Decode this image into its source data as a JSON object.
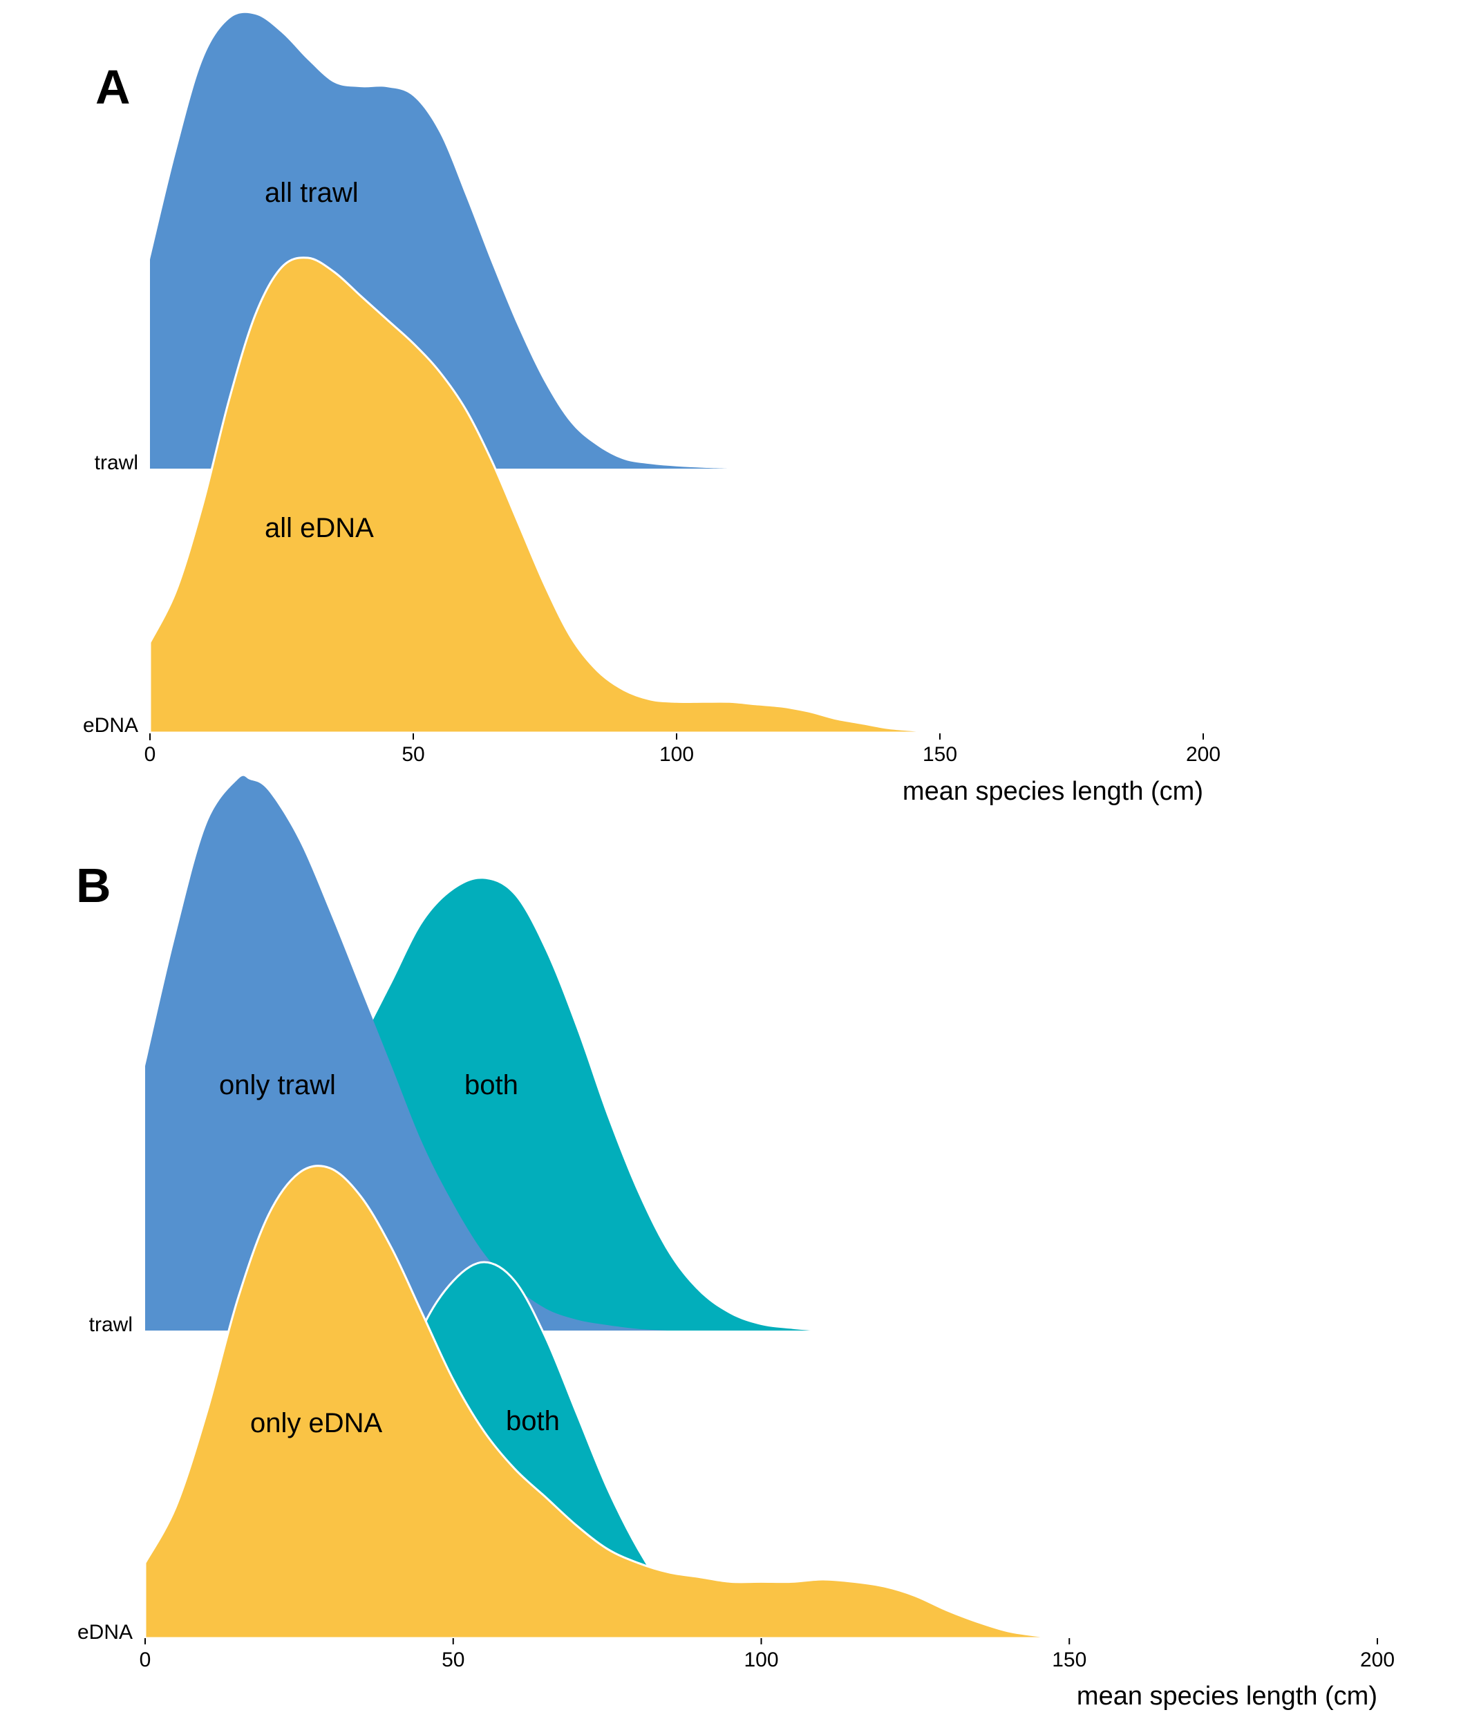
{
  "chart_data": [
    {
      "type": "area",
      "panel": "A",
      "rows": [
        "trawl",
        "eDNA"
      ],
      "xlabel": "mean species length (cm)",
      "ylabel": "",
      "xlim": [
        0,
        200
      ],
      "xticks": [
        0,
        50,
        100,
        150,
        200
      ],
      "grid": false,
      "colors": {
        "trawl": "#5591CF",
        "eDNA": "#FAC345",
        "outline": "#FFFFFF"
      },
      "series": [
        {
          "name": "all trawl",
          "row": "trawl",
          "color": "#5591CF",
          "x": [
            0,
            5,
            10,
            15,
            20,
            25,
            30,
            35,
            40,
            45,
            50,
            55,
            60,
            65,
            70,
            75,
            80,
            85,
            90,
            95,
            100,
            105,
            110
          ],
          "y": [
            0.46,
            0.7,
            0.9,
            0.99,
            1.0,
            0.96,
            0.9,
            0.85,
            0.84,
            0.84,
            0.82,
            0.74,
            0.6,
            0.45,
            0.31,
            0.19,
            0.1,
            0.05,
            0.02,
            0.01,
            0.005,
            0.002,
            0.0
          ]
        },
        {
          "name": "all eDNA",
          "row": "eDNA",
          "color": "#FAC345",
          "x": [
            0,
            5,
            10,
            15,
            20,
            25,
            30,
            35,
            40,
            45,
            50,
            55,
            60,
            65,
            70,
            75,
            80,
            85,
            90,
            95,
            100,
            105,
            110,
            115,
            120,
            125,
            130,
            135,
            140,
            145,
            150
          ],
          "y": [
            0.19,
            0.3,
            0.48,
            0.7,
            0.88,
            0.98,
            1.0,
            0.97,
            0.92,
            0.87,
            0.82,
            0.76,
            0.68,
            0.57,
            0.44,
            0.31,
            0.2,
            0.13,
            0.09,
            0.07,
            0.065,
            0.065,
            0.065,
            0.06,
            0.055,
            0.045,
            0.03,
            0.02,
            0.01,
            0.005,
            0.0
          ]
        }
      ],
      "annotations": [
        "all trawl",
        "all eDNA"
      ]
    },
    {
      "type": "area",
      "panel": "B",
      "rows": [
        "trawl",
        "eDNA"
      ],
      "xlabel": "mean species length (cm)",
      "ylabel": "",
      "xlim": [
        0,
        200
      ],
      "xticks": [
        0,
        50,
        100,
        150,
        200
      ],
      "grid": false,
      "colors": {
        "only": "#5591CF",
        "onlyEDNA": "#FAC345",
        "both": "#02AEBB"
      },
      "series": [
        {
          "name": "only trawl",
          "row": "trawl",
          "color": "#5591CF",
          "x": [
            0,
            5,
            10,
            15,
            17,
            20,
            25,
            30,
            35,
            40,
            45,
            50,
            55,
            60,
            65,
            70,
            75,
            80,
            85
          ],
          "y": [
            0.48,
            0.72,
            0.92,
            1.0,
            1.0,
            0.98,
            0.89,
            0.76,
            0.62,
            0.48,
            0.34,
            0.23,
            0.14,
            0.08,
            0.04,
            0.02,
            0.01,
            0.003,
            0.0
          ]
        },
        {
          "name": "both",
          "row": "trawl",
          "color": "#02AEBB",
          "x": [
            35,
            40,
            45,
            50,
            55,
            60,
            65,
            70,
            75,
            80,
            85,
            90,
            95,
            100,
            105,
            108
          ],
          "y": [
            0.52,
            0.63,
            0.74,
            0.8,
            0.82,
            0.79,
            0.69,
            0.55,
            0.39,
            0.25,
            0.14,
            0.07,
            0.03,
            0.01,
            0.003,
            0.0
          ]
        },
        {
          "name": "only eDNA",
          "row": "eDNA",
          "color": "#FAC345",
          "x": [
            0,
            5,
            10,
            15,
            20,
            25,
            30,
            35,
            40,
            45,
            50,
            55,
            60,
            65,
            70,
            75,
            80,
            85,
            90,
            95,
            100,
            105,
            110,
            115,
            120,
            125,
            130,
            135,
            140,
            145,
            150
          ],
          "y": [
            0.16,
            0.28,
            0.48,
            0.72,
            0.9,
            0.99,
            1.0,
            0.94,
            0.83,
            0.69,
            0.55,
            0.44,
            0.36,
            0.3,
            0.24,
            0.19,
            0.16,
            0.14,
            0.13,
            0.12,
            0.12,
            0.12,
            0.125,
            0.12,
            0.11,
            0.09,
            0.06,
            0.035,
            0.015,
            0.005,
            0.0
          ]
        },
        {
          "name": "both",
          "row": "eDNA",
          "color": "#02AEBB",
          "x": [
            40,
            45,
            50,
            55,
            60,
            65,
            70,
            75,
            80,
            85,
            88
          ],
          "y": [
            0.48,
            0.66,
            0.76,
            0.8,
            0.76,
            0.64,
            0.48,
            0.32,
            0.19,
            0.09,
            0.06
          ]
        }
      ],
      "annotations": [
        "only trawl",
        "both",
        "only eDNA",
        "both"
      ]
    }
  ],
  "panels": {
    "a_letter": "A",
    "b_letter": "B"
  },
  "labels": {
    "row_trawl": "trawl",
    "row_edna": "eDNA",
    "ann_all_trawl": "all trawl",
    "ann_all_edna": "all eDNA",
    "ann_only_trawl": "only trawl",
    "ann_both": "both",
    "ann_only_edna": "only eDNA",
    "xlabel": "mean species length (cm)"
  }
}
